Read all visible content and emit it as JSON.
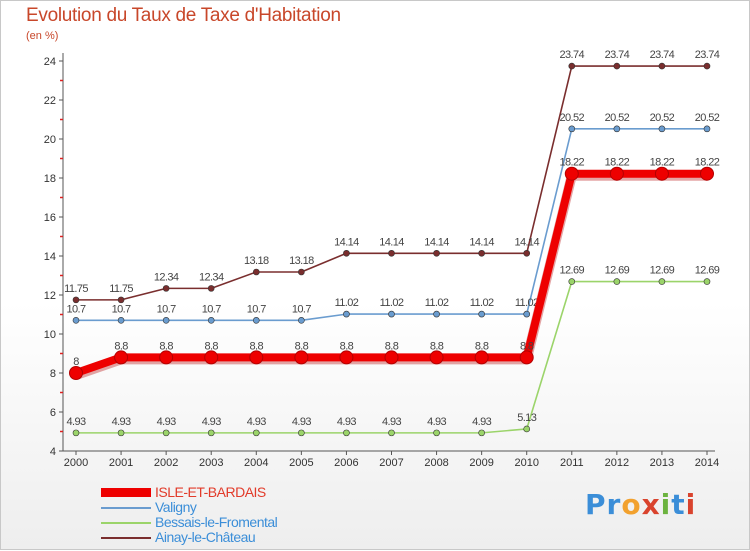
{
  "title": "Evolution du Taux de Taxe d'Habitation",
  "unit": "(en %)",
  "logo": {
    "letters": [
      "P",
      "r",
      "o",
      "x",
      "i",
      "t",
      "i"
    ],
    "colors": [
      "#3b8ed8",
      "#3b8ed8",
      "#f2a12e",
      "#d9432d",
      "#6cb33f",
      "#3b8ed8",
      "#d9432d"
    ]
  },
  "chart_data": {
    "type": "line",
    "title": "Evolution du Taux de Taxe d'Habitation",
    "ylabel": "(en %)",
    "xlabel": "",
    "x": [
      "2000",
      "2001",
      "2002",
      "2003",
      "2004",
      "2005",
      "2006",
      "2007",
      "2008",
      "2009",
      "2010",
      "2011",
      "2012",
      "2013",
      "2014"
    ],
    "ylim": [
      4,
      24
    ],
    "yticks": [
      4,
      6,
      8,
      10,
      12,
      14,
      16,
      18,
      20,
      22,
      24
    ],
    "grid": false,
    "legend_position": "bottom-left",
    "series": [
      {
        "name": "Ainay-le-Château",
        "color": "#7a2e2e",
        "values": [
          11.75,
          11.75,
          12.34,
          12.34,
          13.18,
          13.18,
          14.14,
          14.14,
          14.14,
          14.14,
          14.14,
          23.74,
          23.74,
          23.74,
          23.74
        ],
        "labels": [
          "11.75",
          "11.75",
          "12.34",
          "12.34",
          "13.18",
          "13.18",
          "14.14",
          "14.14",
          "14.14",
          "14.14",
          "14.14",
          "23.74",
          "23.74",
          "23.74",
          "23.74"
        ]
      },
      {
        "name": "Valigny",
        "color": "#6a9ccf",
        "values": [
          10.7,
          10.7,
          10.7,
          10.7,
          10.7,
          10.7,
          11.02,
          11.02,
          11.02,
          11.02,
          11.02,
          20.52,
          20.52,
          20.52,
          20.52
        ],
        "labels": [
          "10.7",
          "10.7",
          "10.7",
          "10.7",
          "10.7",
          "10.7",
          "11.02",
          "11.02",
          "11.02",
          "11.02",
          "11.02",
          "20.52",
          "20.52",
          "20.52",
          "20.52"
        ]
      },
      {
        "name": "Bessais-le-Fromental",
        "color": "#9bd46a",
        "values": [
          4.93,
          4.93,
          4.93,
          4.93,
          4.93,
          4.93,
          4.93,
          4.93,
          4.93,
          4.93,
          5.13,
          12.69,
          12.69,
          12.69,
          12.69
        ],
        "labels": [
          "4.93",
          "4.93",
          "4.93",
          "4.93",
          "4.93",
          "4.93",
          "4.93",
          "4.93",
          "4.93",
          "4.93",
          "5.13",
          "12.69",
          "12.69",
          "12.69",
          "12.69"
        ]
      },
      {
        "name": "ISLE-ET-BARDAIS",
        "color": "#ee0000",
        "values": [
          8,
          8.8,
          8.8,
          8.8,
          8.8,
          8.8,
          8.8,
          8.8,
          8.8,
          8.8,
          8.8,
          18.22,
          18.22,
          18.22,
          18.22
        ],
        "labels": [
          "8",
          "8.8",
          "8.8",
          "8.8",
          "8.8",
          "8.8",
          "8.8",
          "8.8",
          "8.8",
          "8.8",
          "8.8",
          "18.22",
          "18.22",
          "18.22",
          "18.22"
        ]
      }
    ],
    "legend": [
      {
        "name": "ISLE-ET-BARDAIS",
        "color": "#ee0000"
      },
      {
        "name": "Valigny",
        "color": "#6a9ccf"
      },
      {
        "name": "Bessais-le-Fromental",
        "color": "#9bd46a"
      },
      {
        "name": "Ainay-le-Château",
        "color": "#7a2e2e"
      }
    ]
  }
}
